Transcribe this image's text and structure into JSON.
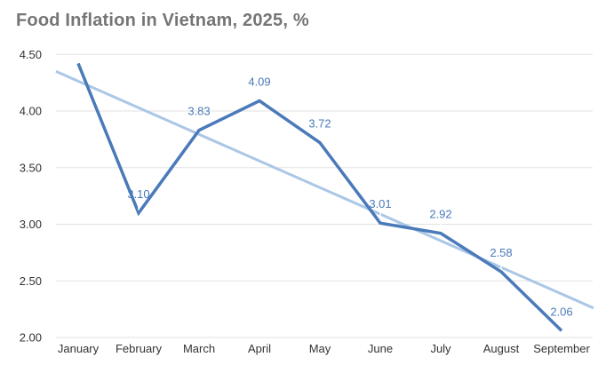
{
  "style": {
    "background": "#ffffff",
    "title_color": "#757575",
    "axis_text_color": "#333333",
    "gridline_color": "#e2e2e2",
    "series_color": "#4a7ab9",
    "trendline_color": "#abc7e6",
    "data_label_color": "#4a7ab9",
    "callout_color": "#ffffff"
  },
  "chart_data": {
    "type": "line",
    "title": "Food Inflation in Vietnam, 2025, %",
    "xlabel": "",
    "ylabel": "",
    "grid": true,
    "legend": "none",
    "ylim": [
      2.0,
      4.5
    ],
    "yticks": [
      {
        "value": 4.5,
        "label": "4.50"
      },
      {
        "value": 4.0,
        "label": "4.00"
      },
      {
        "value": 3.5,
        "label": "3.50"
      },
      {
        "value": 3.0,
        "label": "3.00"
      },
      {
        "value": 2.5,
        "label": "2.50"
      },
      {
        "value": 2.0,
        "label": "2.00"
      }
    ],
    "categories": [
      "January",
      "February",
      "March",
      "April",
      "May",
      "June",
      "July",
      "August",
      "September"
    ],
    "series": [
      {
        "values": [
          4.42,
          3.1,
          3.83,
          4.09,
          3.72,
          3.01,
          2.92,
          2.58,
          2.06
        ],
        "data_labels": [
          "",
          "3.10",
          "3.83",
          "4.09",
          "3.72",
          "3.01",
          "2.92",
          "2.58",
          "2.06"
        ]
      }
    ],
    "trendline": {
      "start_value": 4.35,
      "end_value": 2.26
    }
  }
}
